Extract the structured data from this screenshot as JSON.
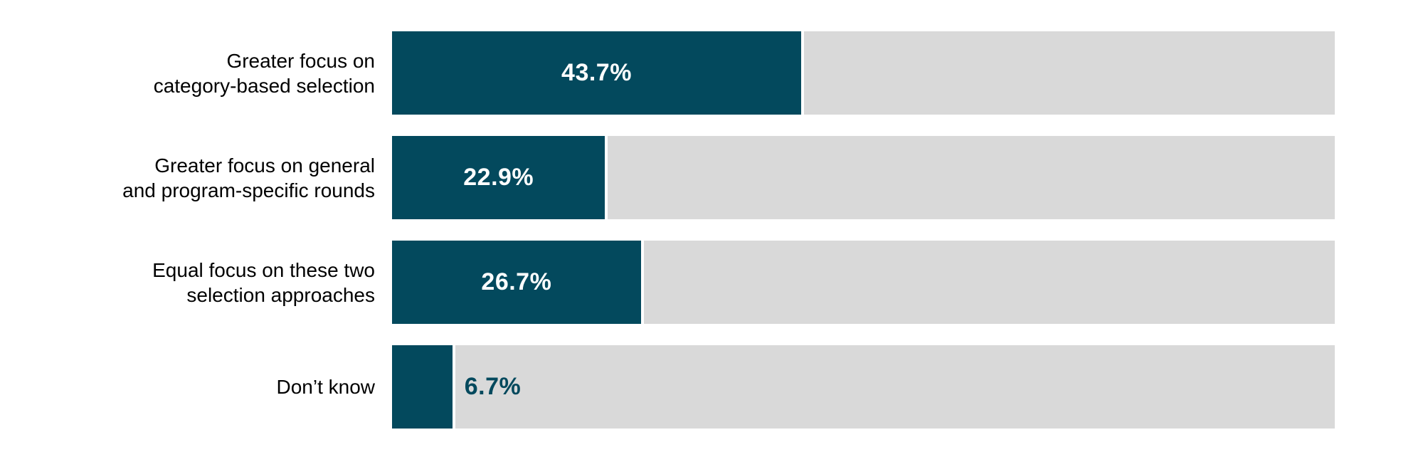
{
  "chart_data": {
    "type": "bar",
    "orientation": "horizontal",
    "title": "",
    "xlabel": "",
    "ylabel": "",
    "xlim": [
      0,
      100
    ],
    "grid": false,
    "legend": false,
    "categories": [
      "Greater focus on\ncategory-based selection",
      "Greater focus on general\nand program-specific rounds",
      "Equal focus on these two\nselection approaches",
      "Don’t know"
    ],
    "values": [
      43.7,
      22.9,
      26.7,
      6.7
    ],
    "value_labels": [
      "43.7%",
      "22.9%",
      "26.7%",
      "6.7%"
    ],
    "value_label_placement": [
      "inside-center",
      "inside-center",
      "inside-center",
      "outside-right"
    ],
    "colors": {
      "bar_fill": "#03495D",
      "track": "#D9D9D9",
      "value_label_inside": "#FFFFFF",
      "value_label_outside": "#03495D",
      "category_label": "#000000",
      "background": "#FFFFFF"
    }
  }
}
